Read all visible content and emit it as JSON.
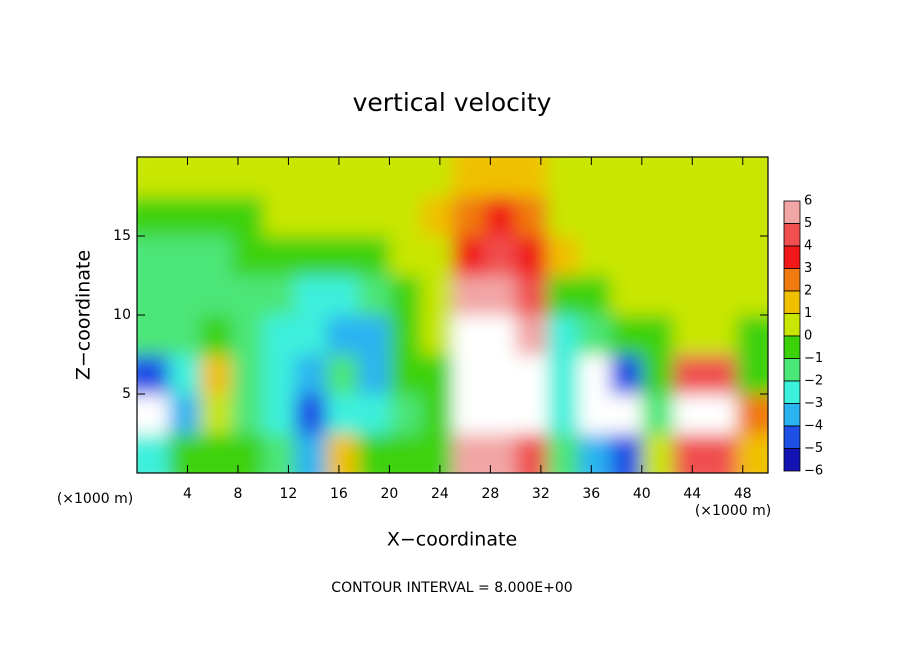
{
  "chart_data": {
    "type": "heatmap",
    "title": "vertical velocity",
    "xlabel": "X−coordinate",
    "ylabel": "Z−coordinate",
    "x_unit": "(×1000 m)",
    "y_unit": "(×1000 m)",
    "annotation": "CONTOUR INTERVAL = 8.000E+00",
    "xlim": [
      0,
      50
    ],
    "ylim": [
      0,
      20
    ],
    "xticks": [
      4,
      8,
      12,
      16,
      20,
      24,
      28,
      32,
      36,
      40,
      44,
      48
    ],
    "yticks": [
      5,
      10,
      15
    ],
    "x": [
      1.25,
      3.75,
      6.25,
      8.75,
      11.25,
      13.75,
      16.25,
      18.75,
      21.25,
      23.75,
      26.25,
      28.75,
      31.25,
      33.75,
      36.25,
      38.75,
      41.25,
      43.75,
      46.25,
      48.75
    ],
    "z": [
      1.25,
      3.75,
      6.25,
      8.75,
      11.25,
      13.75,
      16.25,
      18.75
    ],
    "values": [
      [
        -3,
        -1,
        -1,
        -1,
        -2,
        -4,
        1.5,
        -1,
        -1,
        -0.5,
        5,
        5.5,
        4,
        -2,
        -4,
        -4.5,
        0,
        4,
        4,
        1
      ],
      [
        -6.5,
        -4,
        0.5,
        -2,
        -3,
        -4.5,
        -3,
        -3,
        -1.5,
        -0.5,
        7.5,
        7.5,
        6,
        -3,
        -7,
        -7,
        -2,
        6.5,
        6,
        2
      ],
      [
        -5,
        -3,
        1,
        -1.5,
        -3,
        -3.5,
        -2,
        -3.5,
        -1,
        -0.5,
        7.5,
        7.5,
        6.5,
        -3,
        -7,
        -5,
        -1,
        4,
        4,
        -1
      ],
      [
        -2,
        -1.5,
        -1,
        -2,
        -3,
        -3,
        -3.5,
        -4,
        -1,
        0,
        6,
        6.5,
        5.5,
        -2.5,
        -2,
        -1,
        -1,
        0.5,
        0.5,
        -1
      ],
      [
        -2,
        -2,
        -1.5,
        -1.5,
        -2,
        -2.5,
        -2.5,
        -2,
        -1,
        0.5,
        5,
        5.5,
        4.5,
        -0.5,
        -0.5,
        0.5,
        0.5,
        0.5,
        0.5,
        0
      ],
      [
        -1.5,
        -1.5,
        -1.5,
        -1,
        -0.5,
        -0.5,
        -0.5,
        -0.5,
        0,
        0.5,
        3.5,
        4,
        3,
        1,
        0.5,
        0.8,
        0.8,
        0.8,
        0.8,
        0.5
      ],
      [
        -0.5,
        -0.5,
        -0.5,
        -0.5,
        0,
        0,
        0,
        0.5,
        0.5,
        1,
        2,
        3,
        2,
        0.5,
        0.5,
        0.5,
        0.5,
        0.8,
        0.8,
        0.5
      ],
      [
        0.3,
        0.3,
        0.3,
        0.3,
        0.5,
        0.5,
        0.5,
        0.5,
        0.5,
        0.5,
        1,
        1.5,
        1,
        0.5,
        0.5,
        0.5,
        0.5,
        0.5,
        0.5,
        0.5
      ]
    ],
    "colorbar_ticks": [
      6,
      5,
      4,
      3,
      2,
      1,
      0,
      {
        "value": -1,
        "label": "−1"
      },
      {
        "value": -2,
        "label": "−2"
      },
      {
        "value": -3,
        "label": "−3"
      },
      {
        "value": -4,
        "label": "−4"
      },
      {
        "value": -5,
        "label": "−5"
      },
      {
        "value": -6,
        "label": "−6"
      }
    ],
    "colors": [
      "#f2a5a5",
      "#f05050",
      "#f01818",
      "#f07a10",
      "#f0c000",
      "#c8e600",
      "#3cd20a",
      "#4be678",
      "#3cf0dc",
      "#2cb4f0",
      "#1e50e6",
      "#1414b4"
    ],
    "out_of_range_color": "#ffffff"
  }
}
